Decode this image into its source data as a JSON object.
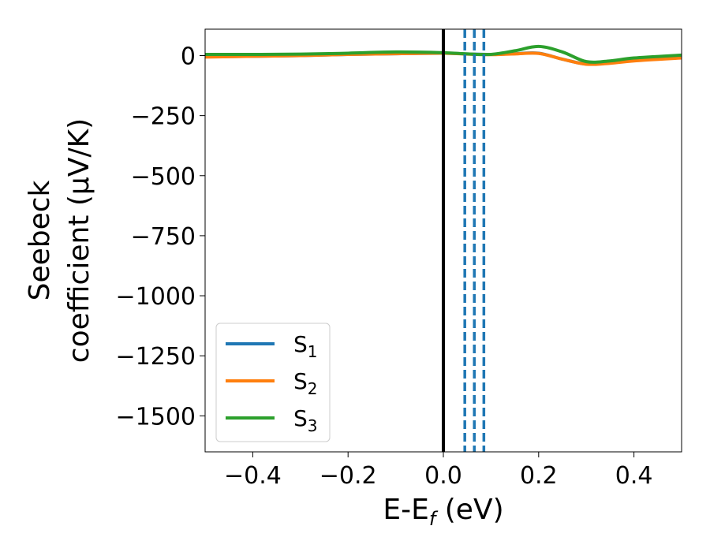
{
  "chart_data": {
    "type": "line",
    "xlabel": "E-E",
    "xlabel_sub": "f",
    "xlabel_unit": " (eV)",
    "ylabel_line1": "Seebeck",
    "ylabel_line2": "coefficient  (μV/K)",
    "xlim": [
      -0.5,
      0.5
    ],
    "ylim": [
      -1650,
      110
    ],
    "x_ticks": [
      -0.4,
      -0.2,
      0.0,
      0.2,
      0.4
    ],
    "x_tick_labels": [
      "−0.4",
      "−0.2",
      "0.0",
      "0.2",
      "0.4"
    ],
    "y_ticks": [
      0,
      -250,
      -500,
      -750,
      -1000,
      -1250,
      -1500
    ],
    "y_tick_labels": [
      "0",
      "−250",
      "−500",
      "−750",
      "−1000",
      "−1250",
      "−1500"
    ],
    "grid": false,
    "legend_position": "lower-left",
    "fermi_line_x": 0.0,
    "dashed_vlines": [
      {
        "x": 0.045,
        "color": "#1f77b4"
      },
      {
        "x": 0.065,
        "color": "#1f77b4"
      },
      {
        "x": 0.085,
        "color": "#1f77b4"
      }
    ],
    "series": [
      {
        "name": "S",
        "sub": "1",
        "color": "#1f77b4",
        "x": [
          -0.5,
          -0.4,
          -0.3,
          -0.2,
          -0.1,
          0.0,
          0.05,
          0.1,
          0.15,
          0.2,
          0.25,
          0.3,
          0.35,
          0.4,
          0.5
        ],
        "y": [
          -5,
          -3,
          0,
          5,
          8,
          10,
          7,
          5,
          8,
          10,
          -15,
          -35,
          -30,
          -20,
          -8
        ]
      },
      {
        "name": "S",
        "sub": "2",
        "color": "#ff7f0e",
        "x": [
          -0.5,
          -0.4,
          -0.3,
          -0.2,
          -0.1,
          0.0,
          0.05,
          0.1,
          0.15,
          0.2,
          0.25,
          0.3,
          0.35,
          0.4,
          0.5
        ],
        "y": [
          -6,
          -3,
          0,
          5,
          8,
          10,
          6,
          4,
          7,
          9,
          -15,
          -36,
          -32,
          -22,
          -10
        ]
      },
      {
        "name": "S",
        "sub": "3",
        "color": "#2ca02c",
        "x": [
          -0.5,
          -0.4,
          -0.3,
          -0.2,
          -0.1,
          0.0,
          0.05,
          0.1,
          0.15,
          0.2,
          0.25,
          0.3,
          0.35,
          0.4,
          0.5
        ],
        "y": [
          5,
          5,
          6,
          10,
          15,
          12,
          7,
          5,
          20,
          38,
          15,
          -25,
          -22,
          -10,
          2
        ]
      }
    ]
  }
}
